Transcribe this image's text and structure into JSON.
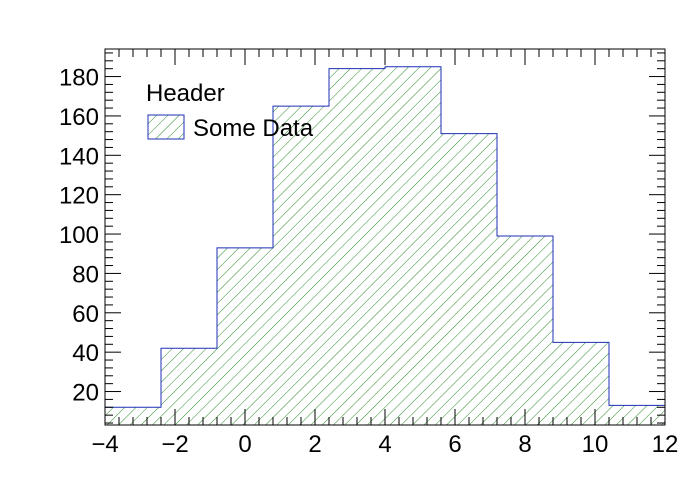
{
  "chart_data": {
    "type": "bar",
    "subtype": "histogram",
    "bin_edges": [
      -4,
      -2.4,
      -0.8,
      0.8,
      2.4,
      4,
      5.6,
      7.2,
      8.8,
      10.4,
      12
    ],
    "values": [
      12,
      42,
      93,
      165,
      184,
      185,
      151,
      99,
      45,
      13
    ],
    "xlim": [
      -4,
      12
    ],
    "ylim": [
      3,
      194
    ],
    "x_ticks": [
      -4,
      -2,
      0,
      2,
      4,
      6,
      8,
      10,
      12
    ],
    "x_tick_labels": [
      "−4",
      "−2",
      "0",
      "2",
      "4",
      "6",
      "8",
      "10",
      "12"
    ],
    "y_ticks": [
      20,
      40,
      60,
      80,
      100,
      120,
      140,
      160,
      180
    ],
    "y_tick_labels": [
      "20",
      "40",
      "60",
      "80",
      "100",
      "120",
      "140",
      "160",
      "180"
    ],
    "x_minor_step": 0.4,
    "y_minor_step": 4,
    "legend": {
      "header": "Header",
      "entries": [
        {
          "label": "Some Data"
        }
      ],
      "placement": "top-left"
    },
    "fill_style": "diagonal-hatch",
    "colors": {
      "hatch": "#2e8b2e",
      "outline": "#1d2fb5",
      "frame": "#000000"
    },
    "grid": false
  }
}
